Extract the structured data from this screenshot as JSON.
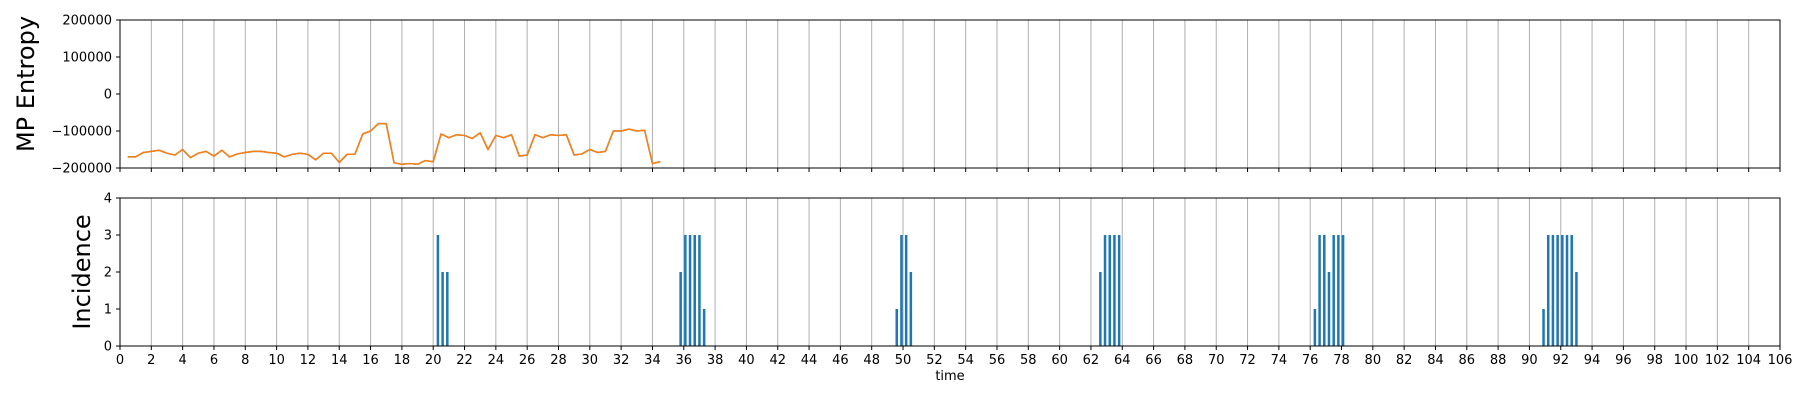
{
  "chart_data": [
    {
      "type": "line",
      "ylabel": "MP Entropy",
      "ylim": [
        -200000,
        200000
      ],
      "yticks": [
        -200000,
        -100000,
        0,
        100000,
        200000
      ],
      "ytick_labels": [
        "−200000",
        "−100000",
        "0",
        "100000",
        "200000"
      ],
      "xlim": [
        0,
        106
      ],
      "grid": "vertical",
      "colors": {
        "over_zero": "#1f77b4",
        "clipped": "#ff7f0e"
      },
      "series": [
        {
          "values": [
            [
              0.5,
              -170000
            ],
            [
              1,
              -170000
            ],
            [
              1.5,
              -158000
            ],
            [
              2,
              -155000
            ],
            [
              2.5,
              -152000
            ],
            [
              3,
              -160000
            ],
            [
              3.5,
              -165000
            ],
            [
              4,
              -150000
            ],
            [
              4.5,
              -172000
            ],
            [
              5,
              -160000
            ],
            [
              5.5,
              -155000
            ],
            [
              6,
              -168000
            ],
            [
              6.5,
              -152000
            ],
            [
              7,
              -170000
            ],
            [
              7.5,
              -162000
            ],
            [
              8,
              -158000
            ],
            [
              8.5,
              -155000
            ],
            [
              9,
              -155000
            ],
            [
              9.5,
              -158000
            ],
            [
              10,
              -160000
            ],
            [
              10.5,
              -170000
            ],
            [
              11,
              -163000
            ],
            [
              11.5,
              -160000
            ],
            [
              12,
              -163000
            ],
            [
              12.5,
              -178000
            ],
            [
              13,
              -160000
            ],
            [
              13.5,
              -160000
            ],
            [
              14,
              -185000
            ],
            [
              14.5,
              -163000
            ],
            [
              15,
              -163000
            ],
            [
              15.5,
              -108000
            ],
            [
              16,
              -100000
            ],
            [
              16.5,
              -80000
            ],
            [
              17,
              -80000
            ],
            [
              17.5,
              -186000
            ],
            [
              18,
              -190000
            ],
            [
              18.5,
              -188000
            ],
            [
              19,
              -190000
            ],
            [
              19.5,
              -180000
            ],
            [
              20,
              -183000
            ],
            [
              20.5,
              -108000
            ],
            [
              21,
              -118000
            ],
            [
              21.5,
              -110000
            ],
            [
              22,
              -112000
            ],
            [
              22.5,
              -120000
            ],
            [
              23,
              -105000
            ],
            [
              23.5,
              -150000
            ],
            [
              24,
              -112000
            ],
            [
              24.5,
              -118000
            ],
            [
              25,
              -110000
            ],
            [
              25.5,
              -168000
            ],
            [
              26,
              -165000
            ],
            [
              26.5,
              -110000
            ],
            [
              27,
              -118000
            ],
            [
              27.5,
              -110000
            ],
            [
              28,
              -112000
            ],
            [
              28.5,
              -110000
            ],
            [
              29,
              -165000
            ],
            [
              29.5,
              -162000
            ],
            [
              30,
              -150000
            ],
            [
              30.5,
              -158000
            ],
            [
              31,
              -155000
            ],
            [
              31.5,
              -100000
            ],
            [
              32,
              -100000
            ],
            [
              32.5,
              -95000
            ],
            [
              33,
              -100000
            ],
            [
              33.5,
              -98000
            ],
            [
              34,
              -188000
            ],
            [
              34.5,
              -183000
            ]
          ]
        }
      ]
    },
    {
      "type": "bar",
      "ylabel": "Incidence",
      "xlabel": "time",
      "ylim": [
        0,
        4
      ],
      "yticks": [
        0,
        1,
        2,
        3,
        4
      ],
      "xlim": [
        0,
        106
      ],
      "xticks": [
        0,
        2,
        4,
        6,
        8,
        10,
        12,
        14,
        16,
        18,
        20,
        22,
        24,
        26,
        28,
        30,
        32,
        34,
        36,
        38,
        40,
        42,
        44,
        46,
        48,
        50,
        52,
        54,
        56,
        58,
        60,
        62,
        64,
        66,
        68,
        70,
        72,
        74,
        76,
        78,
        80,
        82,
        84,
        86,
        88,
        90,
        92,
        94,
        96,
        98,
        100,
        102,
        104,
        106
      ],
      "color": "#1f77b4",
      "points": [
        [
          20.3,
          3
        ],
        [
          20.6,
          2
        ],
        [
          20.9,
          2
        ],
        [
          35.8,
          2
        ],
        [
          36.1,
          3
        ],
        [
          36.4,
          3
        ],
        [
          36.7,
          3
        ],
        [
          37.0,
          3
        ],
        [
          37.3,
          1
        ],
        [
          49.6,
          1
        ],
        [
          49.9,
          3
        ],
        [
          50.2,
          3
        ],
        [
          50.5,
          2
        ],
        [
          62.6,
          2
        ],
        [
          62.9,
          3
        ],
        [
          63.2,
          3
        ],
        [
          63.5,
          3
        ],
        [
          63.8,
          3
        ],
        [
          76.3,
          1
        ],
        [
          76.6,
          3
        ],
        [
          76.9,
          3
        ],
        [
          77.2,
          2
        ],
        [
          77.5,
          3
        ],
        [
          77.8,
          3
        ],
        [
          78.1,
          3
        ],
        [
          90.9,
          1
        ],
        [
          91.2,
          3
        ],
        [
          91.5,
          3
        ],
        [
          91.8,
          3
        ],
        [
          92.1,
          3
        ],
        [
          92.4,
          3
        ],
        [
          92.7,
          3
        ],
        [
          93.0,
          2
        ]
      ]
    }
  ]
}
